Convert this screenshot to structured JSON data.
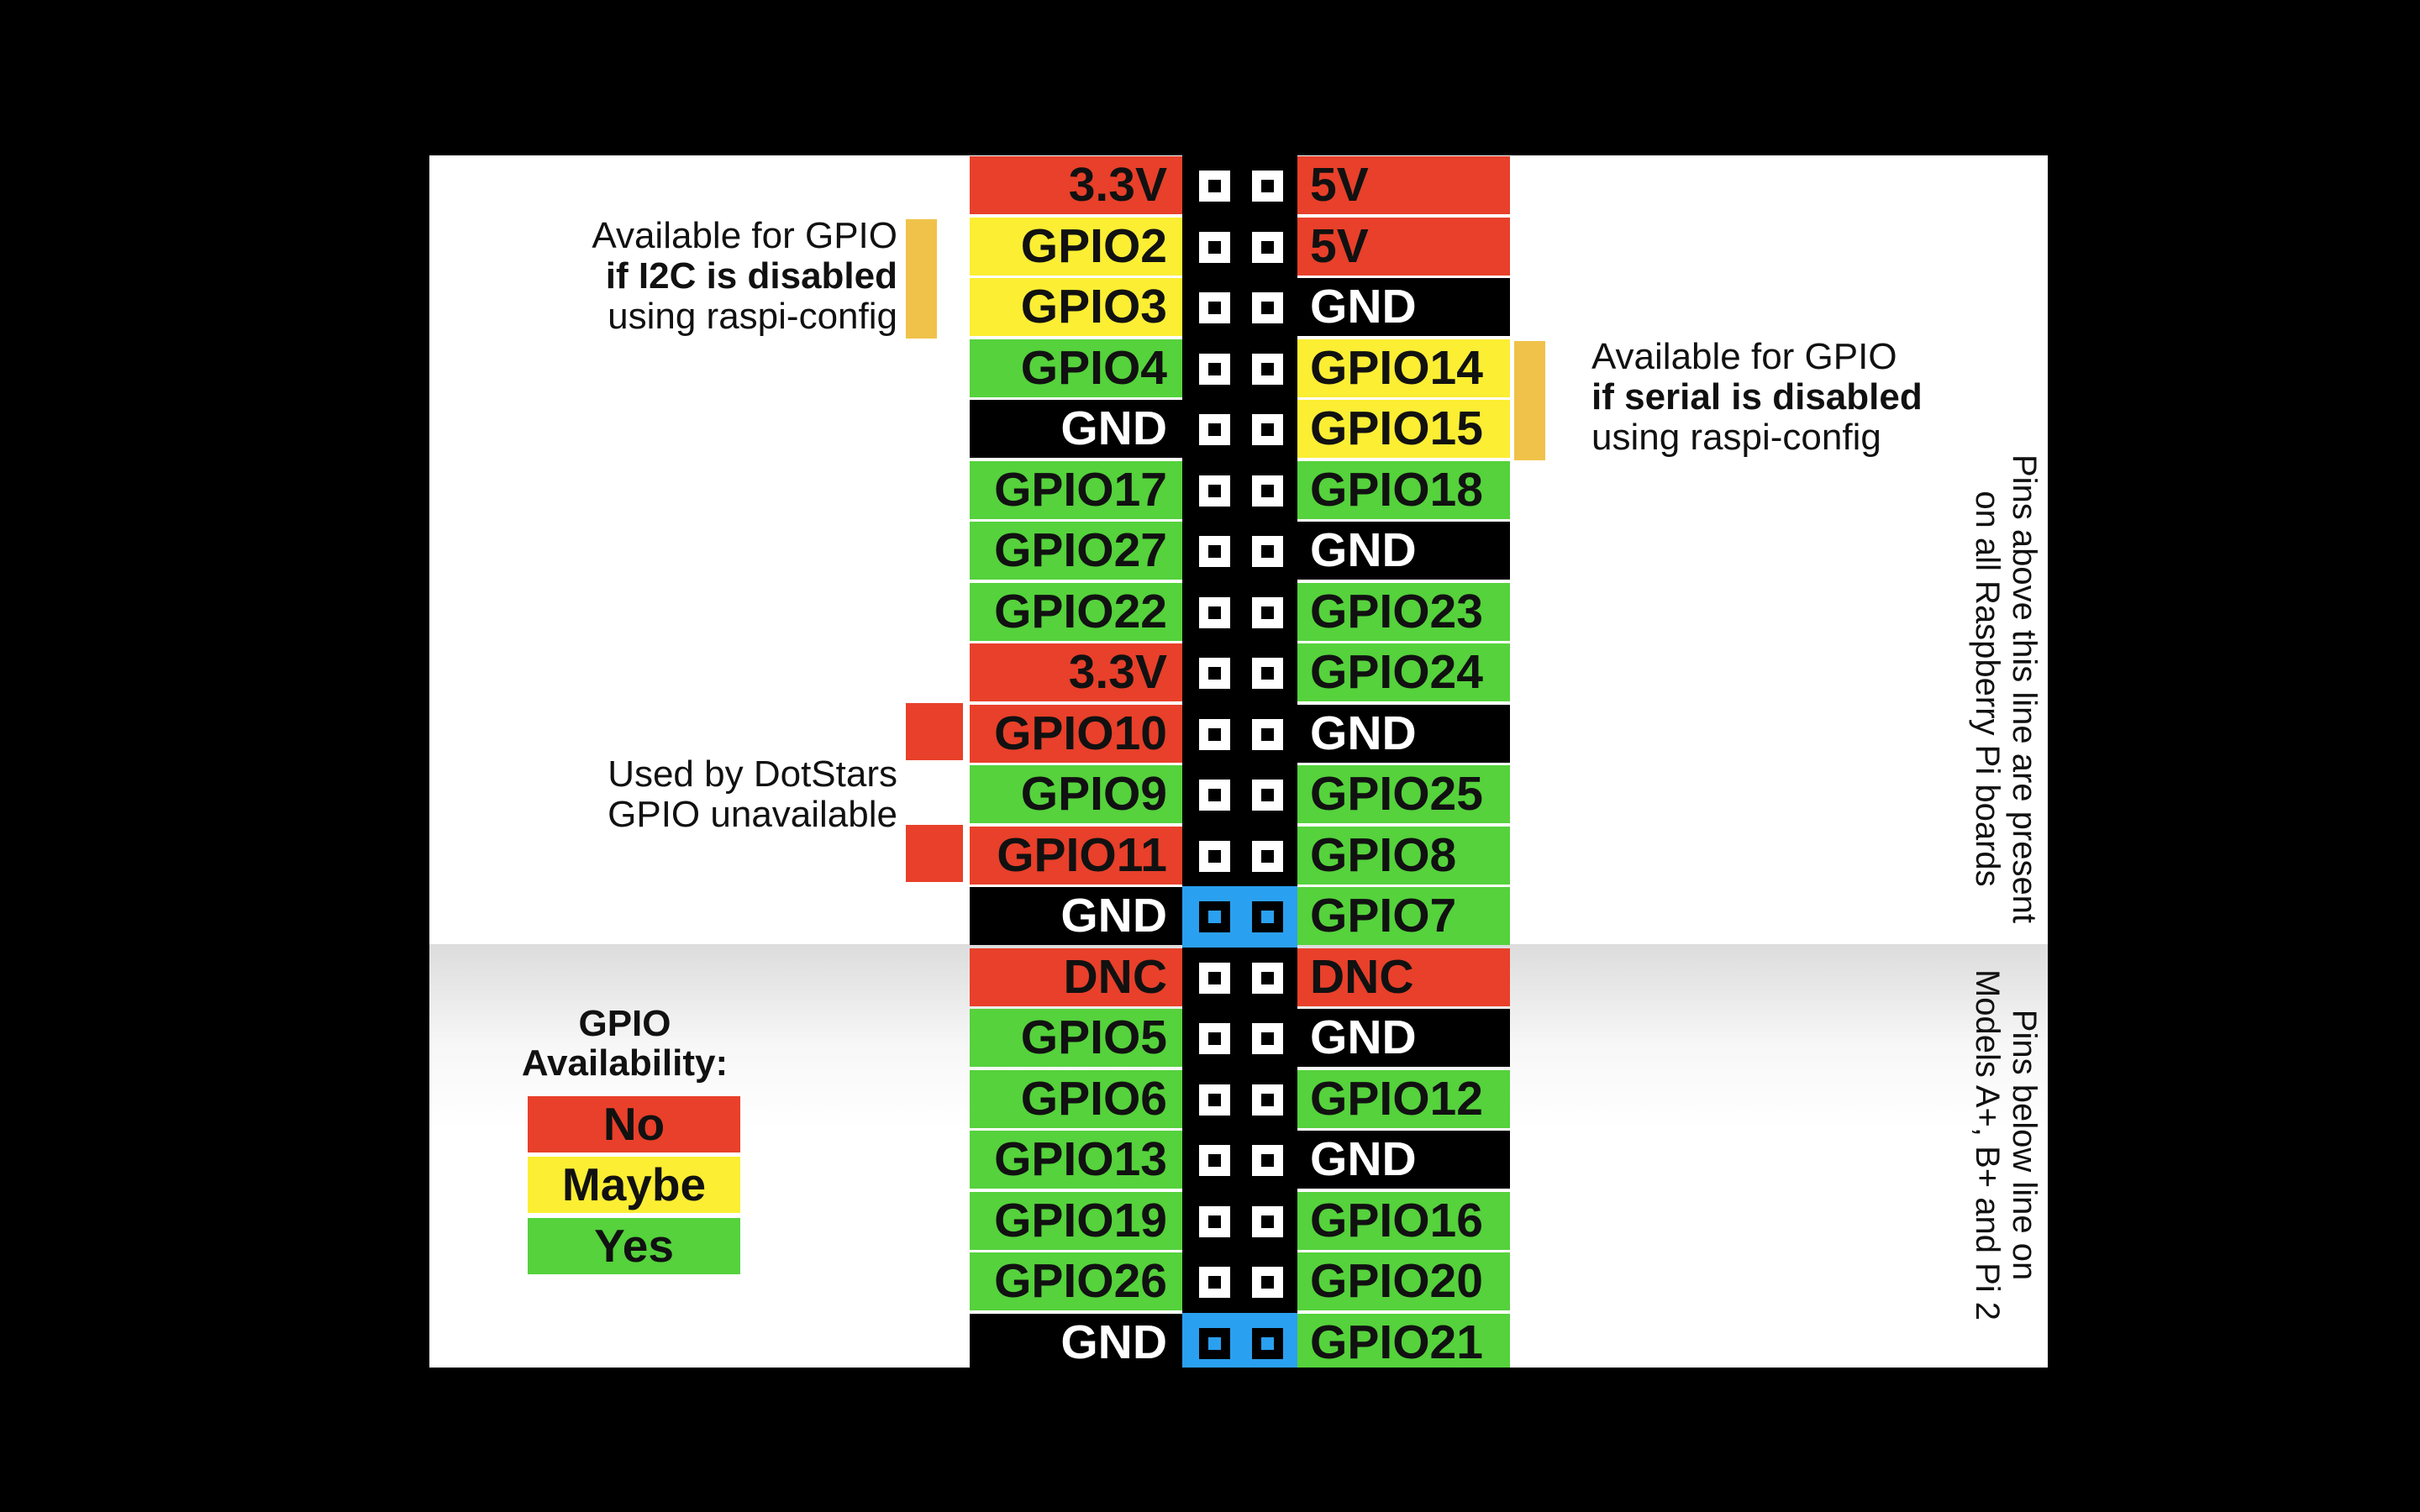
{
  "colors": {
    "no": "#e8402a",
    "maybe": "#fcee33",
    "yes": "#55d23c",
    "ground": "#000000",
    "header": "#000000",
    "header_highlight": "#2aa0f0",
    "bracket": "#f0c24a"
  },
  "header_rows": [
    {
      "left": {
        "label": "3.3V",
        "status": "no"
      },
      "right": {
        "label": "5V",
        "status": "no"
      },
      "highlight": false
    },
    {
      "left": {
        "label": "GPIO2",
        "status": "maybe"
      },
      "right": {
        "label": "5V",
        "status": "no"
      },
      "highlight": false
    },
    {
      "left": {
        "label": "GPIO3",
        "status": "maybe"
      },
      "right": {
        "label": "GND",
        "status": "ground"
      },
      "highlight": false
    },
    {
      "left": {
        "label": "GPIO4",
        "status": "yes"
      },
      "right": {
        "label": "GPIO14",
        "status": "maybe"
      },
      "highlight": false
    },
    {
      "left": {
        "label": "GND",
        "status": "ground"
      },
      "right": {
        "label": "GPIO15",
        "status": "maybe"
      },
      "highlight": false
    },
    {
      "left": {
        "label": "GPIO17",
        "status": "yes"
      },
      "right": {
        "label": "GPIO18",
        "status": "yes"
      },
      "highlight": false
    },
    {
      "left": {
        "label": "GPIO27",
        "status": "yes"
      },
      "right": {
        "label": "GND",
        "status": "ground"
      },
      "highlight": false
    },
    {
      "left": {
        "label": "GPIO22",
        "status": "yes"
      },
      "right": {
        "label": "GPIO23",
        "status": "yes"
      },
      "highlight": false
    },
    {
      "left": {
        "label": "3.3V",
        "status": "no"
      },
      "right": {
        "label": "GPIO24",
        "status": "yes"
      },
      "highlight": false
    },
    {
      "left": {
        "label": "GPIO10",
        "status": "no"
      },
      "right": {
        "label": "GND",
        "status": "ground"
      },
      "highlight": false
    },
    {
      "left": {
        "label": "GPIO9",
        "status": "yes"
      },
      "right": {
        "label": "GPIO25",
        "status": "yes"
      },
      "highlight": false
    },
    {
      "left": {
        "label": "GPIO11",
        "status": "no"
      },
      "right": {
        "label": "GPIO8",
        "status": "yes"
      },
      "highlight": false
    },
    {
      "left": {
        "label": "GND",
        "status": "ground"
      },
      "right": {
        "label": "GPIO7",
        "status": "yes"
      },
      "highlight": true
    },
    {
      "left": {
        "label": "DNC",
        "status": "no"
      },
      "right": {
        "label": "DNC",
        "status": "no"
      },
      "highlight": false
    },
    {
      "left": {
        "label": "GPIO5",
        "status": "yes"
      },
      "right": {
        "label": "GND",
        "status": "ground"
      },
      "highlight": false
    },
    {
      "left": {
        "label": "GPIO6",
        "status": "yes"
      },
      "right": {
        "label": "GPIO12",
        "status": "yes"
      },
      "highlight": false
    },
    {
      "left": {
        "label": "GPIO13",
        "status": "yes"
      },
      "right": {
        "label": "GND",
        "status": "ground"
      },
      "highlight": false
    },
    {
      "left": {
        "label": "GPIO19",
        "status": "yes"
      },
      "right": {
        "label": "GPIO16",
        "status": "yes"
      },
      "highlight": false
    },
    {
      "left": {
        "label": "GPIO26",
        "status": "yes"
      },
      "right": {
        "label": "GPIO20",
        "status": "yes"
      },
      "highlight": false
    },
    {
      "left": {
        "label": "GND",
        "status": "ground"
      },
      "right": {
        "label": "GPIO21",
        "status": "yes"
      },
      "highlight": true
    }
  ],
  "notes": {
    "i2c": {
      "line1": "Available for GPIO",
      "line2": "if I2C is disabled",
      "line3": "using raspi-config"
    },
    "serial": {
      "line1": "Available for GPIO",
      "line2": "if serial is disabled",
      "line3": "using raspi-config"
    },
    "dotstars": {
      "line1": "Used by DotStars",
      "line2": "GPIO unavailable"
    },
    "upper_pins": {
      "line1": "Pins above this line are present",
      "line2": "on all Raspberry Pi boards"
    },
    "lower_pins": {
      "line1": "Pins below line on",
      "line2": "Models A+, B+ and Pi 2"
    }
  },
  "legend": {
    "title_line1": "GPIO",
    "title_line2": "Availability:",
    "items": [
      {
        "label": "No",
        "status": "no"
      },
      {
        "label": "Maybe",
        "status": "maybe"
      },
      {
        "label": "Yes",
        "status": "yes"
      }
    ]
  }
}
